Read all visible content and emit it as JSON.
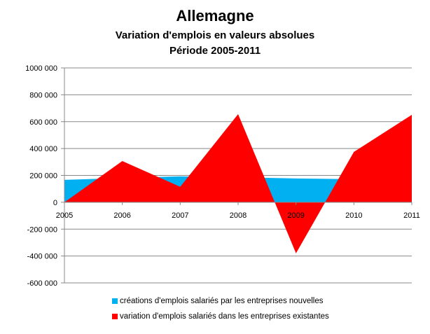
{
  "chart_data": {
    "type": "area",
    "title": "Allemagne",
    "subtitle": [
      "Variation d'emplois en valeurs absolues",
      "Période 2005-2011"
    ],
    "xlabel": "",
    "ylabel": "",
    "categories": [
      "2005",
      "2006",
      "2007",
      "2008",
      "2009",
      "2010",
      "2011"
    ],
    "ylim": [
      -600000,
      1000000
    ],
    "yticks": [
      1000000,
      800000,
      600000,
      400000,
      200000,
      0,
      -200000,
      -400000,
      -600000
    ],
    "ytick_labels": [
      "1000 000",
      "800 000",
      "600 000",
      "400 000",
      "200 000",
      "0",
      "-200 000",
      "-400 000",
      "-600 000"
    ],
    "grid": true,
    "legend_position": "bottom",
    "series": [
      {
        "name": "créations d'emplois salariés par les entreprises nouvelles",
        "color": "#00B0F0",
        "values": [
          167000,
          180000,
          193000,
          186000,
          177000,
          172000,
          170000
        ]
      },
      {
        "name": "variation d'emplois salariés dans les entreprises existantes",
        "color": "#FF0000",
        "values": [
          0,
          307000,
          115000,
          656000,
          -380000,
          375000,
          651000
        ]
      }
    ]
  }
}
